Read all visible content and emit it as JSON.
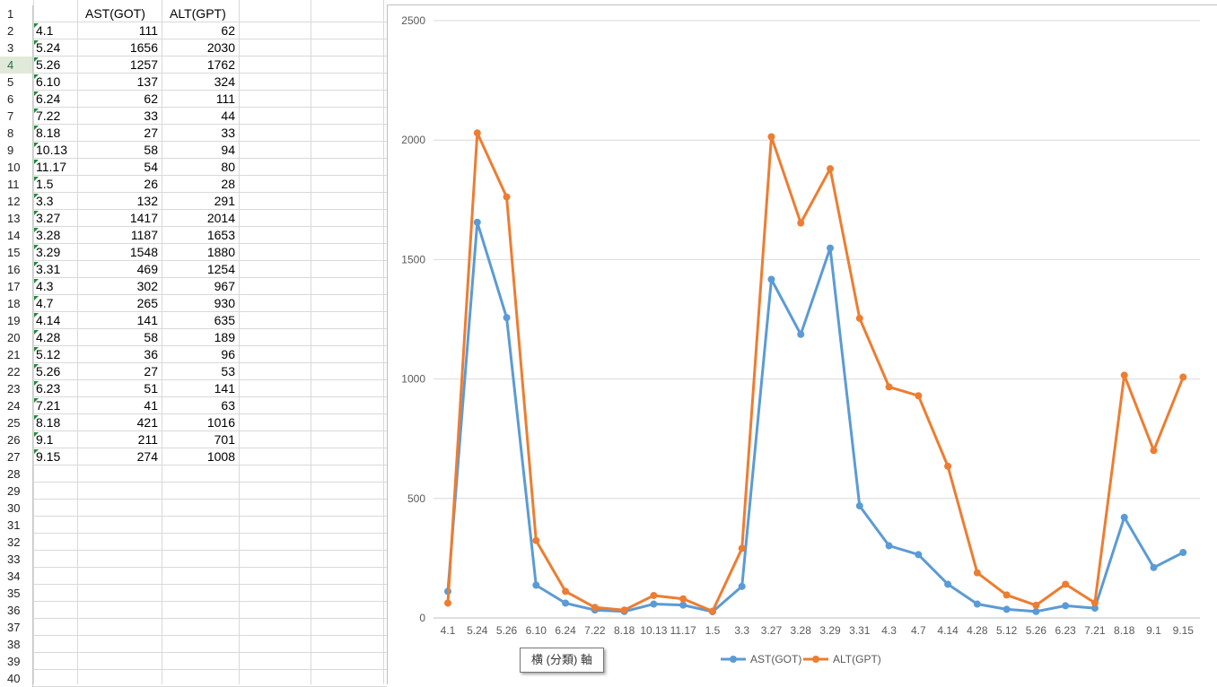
{
  "sheet": {
    "row_numbers": [
      "1",
      "2",
      "3",
      "4",
      "5",
      "6",
      "7",
      "8",
      "9",
      "10",
      "11",
      "12",
      "13",
      "14",
      "15",
      "16",
      "17",
      "18",
      "19",
      "20",
      "21",
      "22",
      "23",
      "24",
      "25",
      "26",
      "27",
      "28",
      "29",
      "30",
      "31",
      "32",
      "33",
      "34",
      "35",
      "36",
      "37",
      "38",
      "39",
      "40"
    ],
    "active_row": "4",
    "headers": [
      "",
      "AST(GOT)",
      "ALT(GPT)"
    ],
    "rows": [
      [
        "4.1",
        "111",
        "62"
      ],
      [
        "5.24",
        "1656",
        "2030"
      ],
      [
        "5.26",
        "1257",
        "1762"
      ],
      [
        "6.10",
        "137",
        "324"
      ],
      [
        "6.24",
        "62",
        "111"
      ],
      [
        "7.22",
        "33",
        "44"
      ],
      [
        "8.18",
        "27",
        "33"
      ],
      [
        "10.13",
        "58",
        "94"
      ],
      [
        "11.17",
        "54",
        "80"
      ],
      [
        "1.5",
        "26",
        "28"
      ],
      [
        "3.3",
        "132",
        "291"
      ],
      [
        "3.27",
        "1417",
        "2014"
      ],
      [
        "3.28",
        "1187",
        "1653"
      ],
      [
        "3.29",
        "1548",
        "1880"
      ],
      [
        "3.31",
        "469",
        "1254"
      ],
      [
        "4.3",
        "302",
        "967"
      ],
      [
        "4.7",
        "265",
        "930"
      ],
      [
        "4.14",
        "141",
        "635"
      ],
      [
        "4.28",
        "58",
        "189"
      ],
      [
        "5.12",
        "36",
        "96"
      ],
      [
        "5.26",
        "27",
        "53"
      ],
      [
        "6.23",
        "51",
        "141"
      ],
      [
        "7.21",
        "41",
        "63"
      ],
      [
        "8.18",
        "421",
        "1016"
      ],
      [
        "9.1",
        "211",
        "701"
      ],
      [
        "9.15",
        "274",
        "1008"
      ]
    ]
  },
  "chart_data": {
    "type": "line",
    "categories": [
      "4.1",
      "5.24",
      "5.26",
      "6.10",
      "6.24",
      "7.22",
      "8.18",
      "10.13",
      "11.17",
      "1.5",
      "3.3",
      "3.27",
      "3.28",
      "3.29",
      "3.31",
      "4.3",
      "4.7",
      "4.14",
      "4.28",
      "5.12",
      "5.26",
      "6.23",
      "7.21",
      "8.18",
      "9.1",
      "9.15"
    ],
    "series": [
      {
        "name": "AST(GOT)",
        "color": "#5b9bd5",
        "values": [
          111,
          1656,
          1257,
          137,
          62,
          33,
          27,
          58,
          54,
          26,
          132,
          1417,
          1187,
          1548,
          469,
          302,
          265,
          141,
          58,
          36,
          27,
          51,
          41,
          421,
          211,
          274
        ]
      },
      {
        "name": "ALT(GPT)",
        "color": "#ed7d31",
        "values": [
          62,
          2030,
          1762,
          324,
          111,
          44,
          33,
          94,
          80,
          28,
          291,
          2014,
          1653,
          1880,
          1254,
          967,
          930,
          635,
          189,
          96,
          53,
          141,
          63,
          1016,
          701,
          1008
        ]
      }
    ],
    "yticks": [
      "0",
      "500",
      "1000",
      "1500",
      "2000",
      "2500"
    ],
    "ylim": [
      0,
      2500
    ],
    "grid": true,
    "legend": "bottom"
  },
  "tooltip": {
    "text": "横 (分類) 軸"
  }
}
